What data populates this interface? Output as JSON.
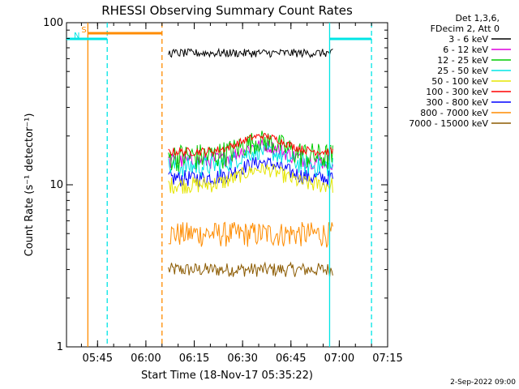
{
  "chart_data": {
    "type": "line",
    "title": "RHESSI Observing Summary Count Rates",
    "xlabel": "Start Time (18-Nov-17 05:35:22)",
    "ylabel": "Count Rate (s⁻¹ detector⁻¹)",
    "y_scale": "log",
    "ylim": [
      1,
      100
    ],
    "y_ticks": [
      {
        "value": 1,
        "label": "1"
      },
      {
        "value": 10,
        "label": "10"
      },
      {
        "value": 100,
        "label": "100"
      }
    ],
    "x_range": [
      "05:35:22",
      "07:15"
    ],
    "x_ticks": [
      "05:45",
      "06:00",
      "06:15",
      "06:30",
      "06:45",
      "07:00",
      "07:15"
    ],
    "legend_header": [
      "Det 1,3,6,",
      "FDecim 2, Att 0"
    ],
    "legend_position": "top-right outside",
    "series": [
      {
        "name": "3 - 6 keV",
        "color": "#000000",
        "level": 65,
        "spread": 0.06
      },
      {
        "name": "6 - 12 keV",
        "color": "#dd00dd",
        "level": 14,
        "spread": 0.12
      },
      {
        "name": "12 - 25 keV",
        "color": "#00cc00",
        "level": 15,
        "spread": 0.2
      },
      {
        "name": "25 - 50 keV",
        "color": "#00e5e5",
        "level": 13,
        "spread": 0.15
      },
      {
        "name": "50 - 100 keV",
        "color": "#e5e500",
        "level": 10,
        "spread": 0.12
      },
      {
        "name": "100 - 300 keV",
        "color": "#ff0000",
        "level": 16,
        "spread": 0.06
      },
      {
        "name": "300 - 800 keV",
        "color": "#0000ff",
        "level": 11,
        "spread": 0.12
      },
      {
        "name": "800 - 7000 keV",
        "color": "#ff8c00",
        "level": 5,
        "spread": 0.18
      },
      {
        "name": "7000 - 15000 keV",
        "color": "#8b5a00",
        "level": 3,
        "spread": 0.1
      }
    ],
    "data_window": [
      "06:07",
      "06:58"
    ],
    "annotations": [
      {
        "label": "S",
        "color": "#ff8c00",
        "kind": "saa",
        "start": "05:42",
        "end": "06:05"
      },
      {
        "label": "N",
        "color": "#00e5e5",
        "kind": "night",
        "start": "05:35",
        "end": "05:48"
      },
      {
        "label": "",
        "color": "#00e5e5",
        "kind": "night",
        "start": "06:57",
        "end": "07:10"
      }
    ],
    "vertical_lines": [
      {
        "time": "05:42",
        "color": "#ff8c00",
        "style": "solid"
      },
      {
        "time": "05:48",
        "color": "#00e5e5",
        "style": "dashed"
      },
      {
        "time": "06:05",
        "color": "#ff8c00",
        "style": "dashed"
      },
      {
        "time": "06:57",
        "color": "#00e5e5",
        "style": "solid"
      },
      {
        "time": "07:10",
        "color": "#00e5e5",
        "style": "dashed"
      }
    ],
    "grid": false
  },
  "footer": {
    "date_stamp": "2-Sep-2022 09:00"
  }
}
